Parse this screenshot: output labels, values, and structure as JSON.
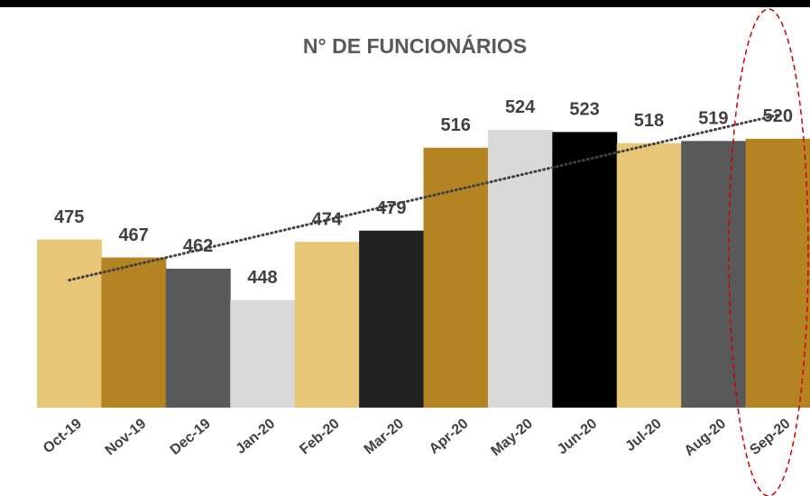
{
  "chart_data": {
    "type": "bar",
    "title": "N° DE FUNCIONÁRIOS",
    "categories": [
      "Oct-19",
      "Nov-19",
      "Dec-19",
      "Jan-20",
      "Feb-20",
      "Mar-20",
      "Apr-20",
      "May-20",
      "Jun-20",
      "Jul-20",
      "Aug-20",
      "Sep-20"
    ],
    "values": [
      475,
      467,
      462,
      448,
      474,
      479,
      516,
      524,
      523,
      518,
      519,
      520
    ],
    "colors": [
      "#e8c677",
      "#b38421",
      "#595959",
      "#d9d9d9",
      "#e8c677",
      "#222222",
      "#b38421",
      "#d9d9d9",
      "#000000",
      "#e8c677",
      "#595959",
      "#b38421"
    ],
    "ylim": [
      400,
      530
    ],
    "trendline": true
  }
}
